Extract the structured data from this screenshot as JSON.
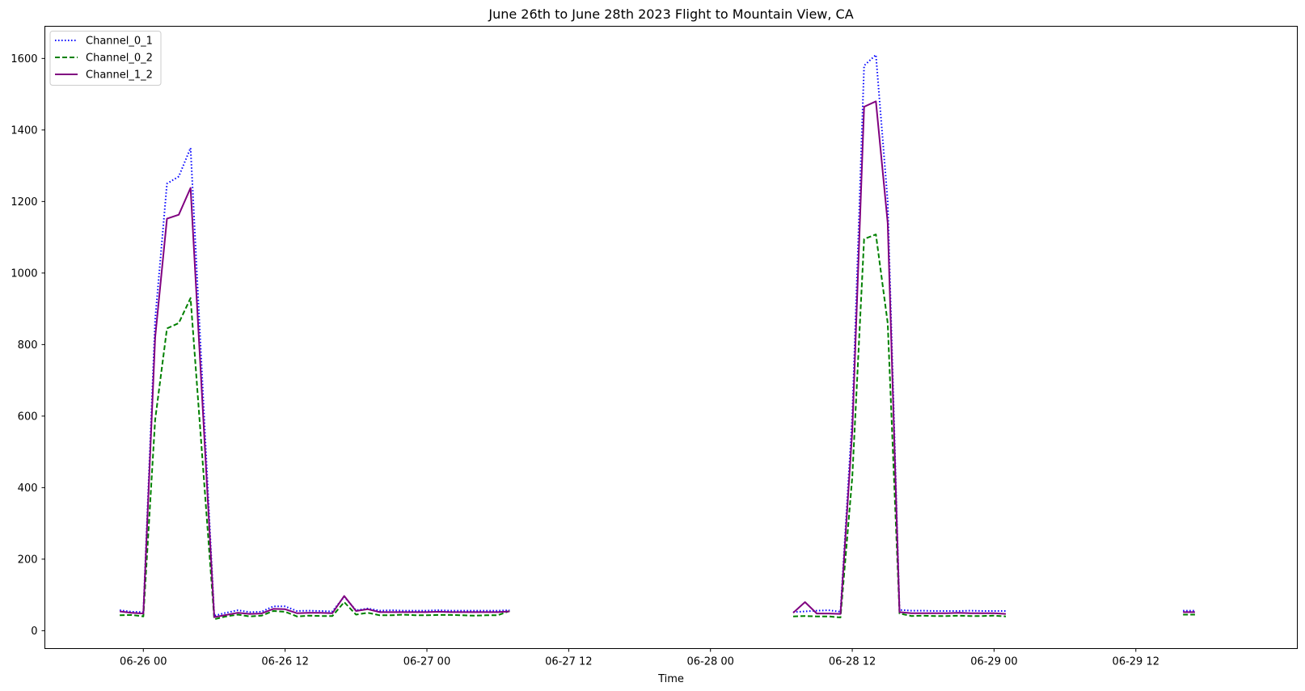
{
  "chart_data": {
    "type": "line",
    "title": "June 26th to June 28th 2023 Flight to Mountain View, CA",
    "xlabel": "Time",
    "ylabel": "",
    "x_type": "datetime",
    "xlim": [
      "2023-06-25T15:40",
      "2023-06-30T01:40"
    ],
    "ylim": [
      -50,
      1690
    ],
    "yticks": [
      0,
      200,
      400,
      600,
      800,
      1000,
      1200,
      1400,
      1600
    ],
    "xticks": [
      {
        "t": "2023-06-26T00:00",
        "label": "06-26 00"
      },
      {
        "t": "2023-06-26T12:00",
        "label": "06-26 12"
      },
      {
        "t": "2023-06-27T00:00",
        "label": "06-27 00"
      },
      {
        "t": "2023-06-27T12:00",
        "label": "06-27 12"
      },
      {
        "t": "2023-06-28T00:00",
        "label": "06-28 00"
      },
      {
        "t": "2023-06-28T12:00",
        "label": "06-28 12"
      },
      {
        "t": "2023-06-29T00:00",
        "label": "06-29 00"
      },
      {
        "t": "2023-06-29T12:00",
        "label": "06-29 12"
      }
    ],
    "grid": false,
    "legend_position": "top-left",
    "series": [
      {
        "name": "Channel_0_1",
        "color": "#0000ff",
        "style": "dotted",
        "segments": [
          [
            [
              "2023-06-25T22:00",
              57
            ],
            [
              "2023-06-25T23:00",
              53
            ],
            [
              "2023-06-26T00:00",
              52
            ],
            [
              "2023-06-26T01:00",
              870
            ],
            [
              "2023-06-26T02:00",
              1250
            ],
            [
              "2023-06-26T03:00",
              1270
            ],
            [
              "2023-06-26T04:00",
              1350
            ],
            [
              "2023-06-26T06:00",
              42
            ],
            [
              "2023-06-26T07:00",
              50
            ],
            [
              "2023-06-26T08:00",
              57
            ],
            [
              "2023-06-26T09:00",
              52
            ],
            [
              "2023-06-26T10:00",
              53
            ],
            [
              "2023-06-26T11:00",
              68
            ],
            [
              "2023-06-26T12:00",
              68
            ],
            [
              "2023-06-26T13:00",
              55
            ],
            [
              "2023-06-26T14:00",
              56
            ],
            [
              "2023-06-26T15:00",
              55
            ],
            [
              "2023-06-26T16:00",
              54
            ],
            [
              "2023-06-26T17:00",
              95
            ],
            [
              "2023-06-26T18:00",
              57
            ],
            [
              "2023-06-26T19:00",
              62
            ],
            [
              "2023-06-26T20:00",
              56
            ],
            [
              "2023-06-26T21:00",
              57
            ],
            [
              "2023-06-26T22:00",
              56
            ],
            [
              "2023-06-26T23:00",
              56
            ],
            [
              "2023-06-27T00:00",
              56
            ],
            [
              "2023-06-27T01:00",
              57
            ],
            [
              "2023-06-27T02:00",
              56
            ],
            [
              "2023-06-27T03:00",
              56
            ],
            [
              "2023-06-27T04:00",
              56
            ],
            [
              "2023-06-27T05:00",
              56
            ],
            [
              "2023-06-27T06:00",
              56
            ],
            [
              "2023-06-27T07:00",
              57
            ]
          ],
          [
            [
              "2023-06-28T07:00",
              52
            ],
            [
              "2023-06-28T08:00",
              54
            ],
            [
              "2023-06-28T09:00",
              56
            ],
            [
              "2023-06-28T10:00",
              57
            ],
            [
              "2023-06-28T11:00",
              53
            ],
            [
              "2023-06-28T12:00",
              600
            ],
            [
              "2023-06-28T13:00",
              1580
            ],
            [
              "2023-06-28T14:00",
              1610
            ],
            [
              "2023-06-28T15:00",
              1200
            ],
            [
              "2023-06-28T16:00",
              58
            ],
            [
              "2023-06-28T17:00",
              56
            ],
            [
              "2023-06-28T18:00",
              56
            ],
            [
              "2023-06-28T19:00",
              55
            ],
            [
              "2023-06-28T20:00",
              55
            ],
            [
              "2023-06-28T21:00",
              55
            ],
            [
              "2023-06-28T22:00",
              56
            ],
            [
              "2023-06-28T23:00",
              55
            ],
            [
              "2023-06-29T00:00",
              55
            ],
            [
              "2023-06-29T01:00",
              55
            ]
          ],
          [
            [
              "2023-06-29T16:00",
              56
            ],
            [
              "2023-06-29T17:00",
              56
            ]
          ]
        ]
      },
      {
        "name": "Channel_0_2",
        "color": "#008000",
        "style": "dashed",
        "segments": [
          [
            [
              "2023-06-25T22:00",
              43
            ],
            [
              "2023-06-25T23:00",
              44
            ],
            [
              "2023-06-26T00:00",
              40
            ],
            [
              "2023-06-26T01:00",
              590
            ],
            [
              "2023-06-26T02:00",
              845
            ],
            [
              "2023-06-26T03:00",
              860
            ],
            [
              "2023-06-26T04:00",
              930
            ],
            [
              "2023-06-26T06:00",
              32
            ],
            [
              "2023-06-26T07:00",
              40
            ],
            [
              "2023-06-26T08:00",
              45
            ],
            [
              "2023-06-26T09:00",
              40
            ],
            [
              "2023-06-26T10:00",
              42
            ],
            [
              "2023-06-26T11:00",
              55
            ],
            [
              "2023-06-26T12:00",
              53
            ],
            [
              "2023-06-26T13:00",
              40
            ],
            [
              "2023-06-26T14:00",
              42
            ],
            [
              "2023-06-26T15:00",
              41
            ],
            [
              "2023-06-26T16:00",
              41
            ],
            [
              "2023-06-26T17:00",
              80
            ],
            [
              "2023-06-26T18:00",
              45
            ],
            [
              "2023-06-26T19:00",
              50
            ],
            [
              "2023-06-26T20:00",
              43
            ],
            [
              "2023-06-26T21:00",
              43
            ],
            [
              "2023-06-26T22:00",
              45
            ],
            [
              "2023-06-26T23:00",
              43
            ],
            [
              "2023-06-27T00:00",
              43
            ],
            [
              "2023-06-27T01:00",
              44
            ],
            [
              "2023-06-27T02:00",
              44
            ],
            [
              "2023-06-27T03:00",
              43
            ],
            [
              "2023-06-27T04:00",
              42
            ],
            [
              "2023-06-27T05:00",
              43
            ],
            [
              "2023-06-27T06:00",
              43
            ],
            [
              "2023-06-27T07:00",
              55
            ]
          ],
          [
            [
              "2023-06-28T07:00",
              40
            ],
            [
              "2023-06-28T08:00",
              41
            ],
            [
              "2023-06-28T09:00",
              40
            ],
            [
              "2023-06-28T10:00",
              40
            ],
            [
              "2023-06-28T11:00",
              37
            ],
            [
              "2023-06-28T12:00",
              430
            ],
            [
              "2023-06-28T13:00",
              1095
            ],
            [
              "2023-06-28T14:00",
              1108
            ],
            [
              "2023-06-28T15:00",
              860
            ],
            [
              "2023-06-28T16:00",
              48
            ],
            [
              "2023-06-28T17:00",
              41
            ],
            [
              "2023-06-28T18:00",
              42
            ],
            [
              "2023-06-28T19:00",
              41
            ],
            [
              "2023-06-28T20:00",
              41
            ],
            [
              "2023-06-28T21:00",
              42
            ],
            [
              "2023-06-28T22:00",
              41
            ],
            [
              "2023-06-28T23:00",
              41
            ],
            [
              "2023-06-29T00:00",
              42
            ],
            [
              "2023-06-29T01:00",
              40
            ]
          ],
          [
            [
              "2023-06-29T16:00",
              45
            ],
            [
              "2023-06-29T17:00",
              45
            ]
          ]
        ]
      },
      {
        "name": "Channel_1_2",
        "color": "#800080",
        "style": "solid",
        "segments": [
          [
            [
              "2023-06-25T22:00",
              54
            ],
            [
              "2023-06-25T23:00",
              50
            ],
            [
              "2023-06-26T00:00",
              48
            ],
            [
              "2023-06-26T01:00",
              820
            ],
            [
              "2023-06-26T02:00",
              1152
            ],
            [
              "2023-06-26T03:00",
              1163
            ],
            [
              "2023-06-26T04:00",
              1238
            ],
            [
              "2023-06-26T06:00",
              38
            ],
            [
              "2023-06-26T07:00",
              44
            ],
            [
              "2023-06-26T08:00",
              50
            ],
            [
              "2023-06-26T09:00",
              47
            ],
            [
              "2023-06-26T10:00",
              48
            ],
            [
              "2023-06-26T11:00",
              61
            ],
            [
              "2023-06-26T12:00",
              60
            ],
            [
              "2023-06-26T13:00",
              49
            ],
            [
              "2023-06-26T14:00",
              50
            ],
            [
              "2023-06-26T15:00",
              50
            ],
            [
              "2023-06-26T16:00",
              49
            ],
            [
              "2023-06-26T17:00",
              97
            ],
            [
              "2023-06-26T18:00",
              55
            ],
            [
              "2023-06-26T19:00",
              60
            ],
            [
              "2023-06-26T20:00",
              52
            ],
            [
              "2023-06-26T21:00",
              52
            ],
            [
              "2023-06-26T22:00",
              52
            ],
            [
              "2023-06-26T23:00",
              52
            ],
            [
              "2023-06-27T00:00",
              52
            ],
            [
              "2023-06-27T01:00",
              53
            ],
            [
              "2023-06-27T02:00",
              52
            ],
            [
              "2023-06-27T03:00",
              52
            ],
            [
              "2023-06-27T04:00",
              52
            ],
            [
              "2023-06-27T05:00",
              52
            ],
            [
              "2023-06-27T06:00",
              52
            ],
            [
              "2023-06-27T07:00",
              54
            ]
          ],
          [
            [
              "2023-06-28T07:00",
              50
            ],
            [
              "2023-06-28T08:00",
              80
            ],
            [
              "2023-06-28T09:00",
              48
            ],
            [
              "2023-06-28T10:00",
              48
            ],
            [
              "2023-06-28T11:00",
              47
            ],
            [
              "2023-06-28T12:00",
              560
            ],
            [
              "2023-06-28T13:00",
              1465
            ],
            [
              "2023-06-28T14:00",
              1480
            ],
            [
              "2023-06-28T15:00",
              1140
            ],
            [
              "2023-06-28T16:00",
              52
            ],
            [
              "2023-06-28T17:00",
              49
            ],
            [
              "2023-06-28T18:00",
              49
            ],
            [
              "2023-06-28T19:00",
              49
            ],
            [
              "2023-06-28T20:00",
              49
            ],
            [
              "2023-06-28T21:00",
              50
            ],
            [
              "2023-06-28T22:00",
              49
            ],
            [
              "2023-06-28T23:00",
              49
            ],
            [
              "2023-06-29T00:00",
              49
            ],
            [
              "2023-06-29T01:00",
              47
            ]
          ],
          [
            [
              "2023-06-29T16:00",
              52
            ],
            [
              "2023-06-29T17:00",
              52
            ]
          ]
        ]
      }
    ]
  }
}
